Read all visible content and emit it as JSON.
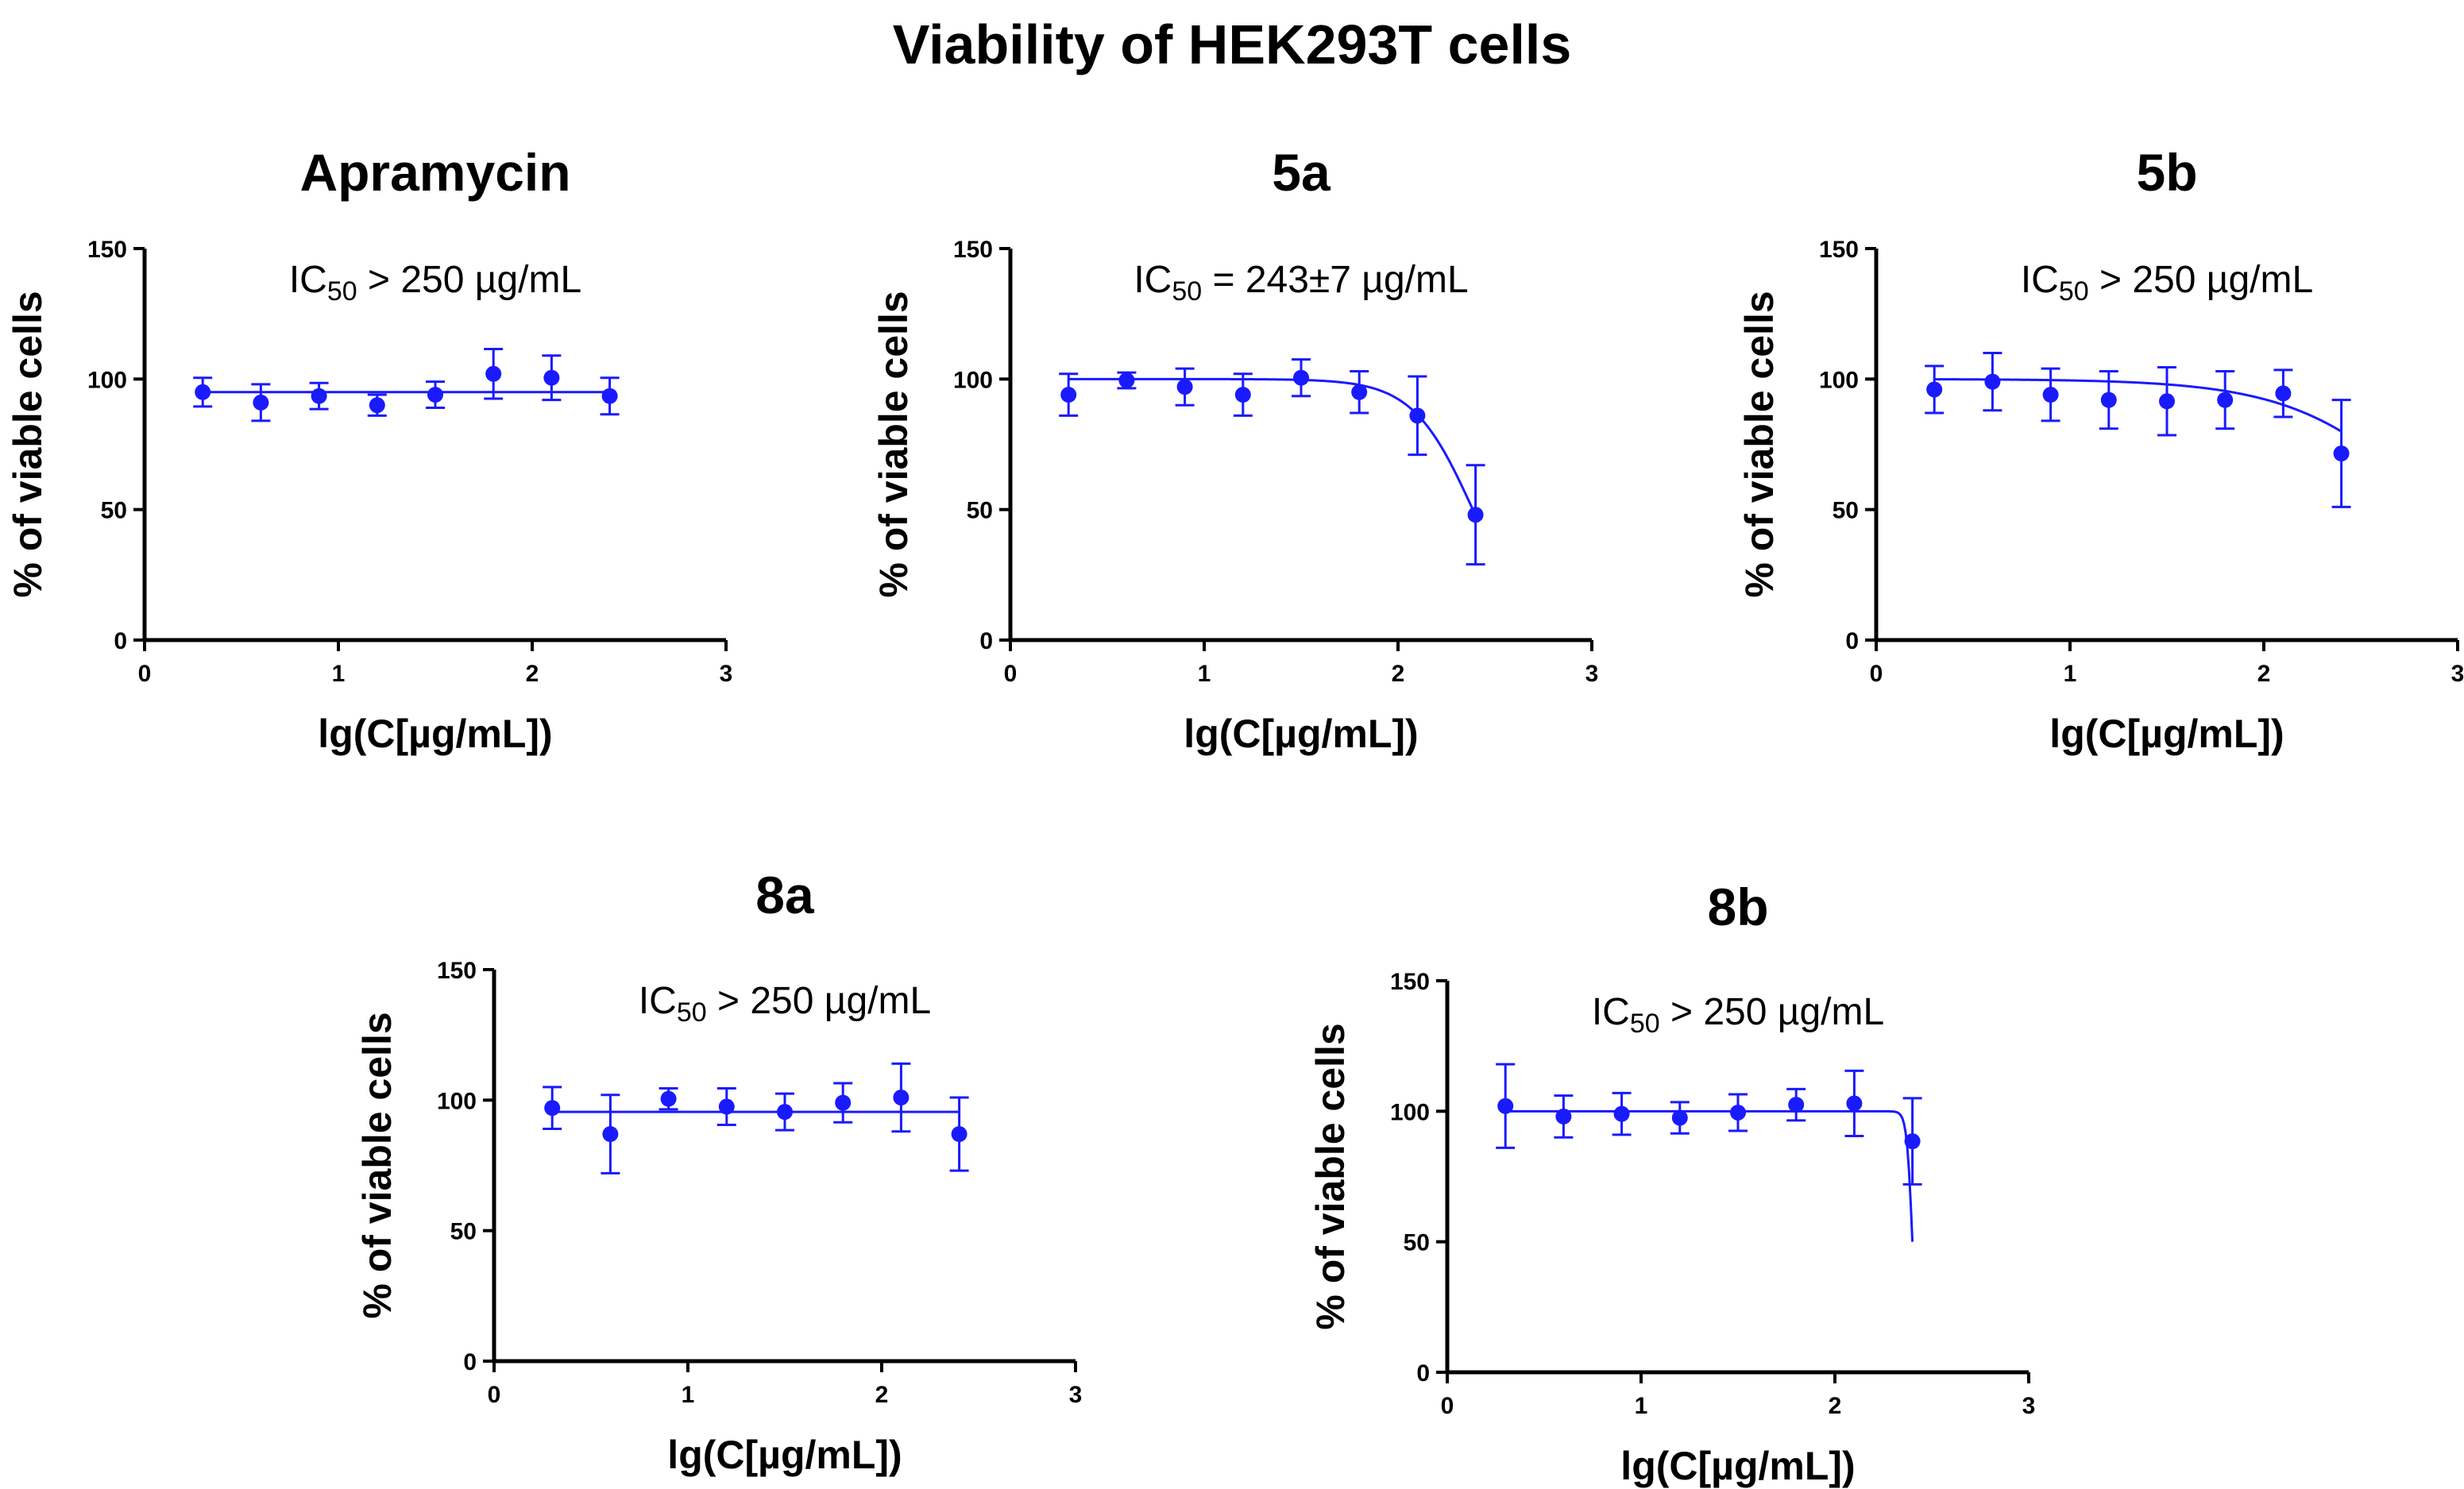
{
  "chart_data": {
    "title": "Viability of HEK293T cells",
    "panels": [
      {
        "type": "scatter",
        "title": "Apramycin",
        "annotation": {
          "prefix": "IC",
          "sub": "50",
          "suffix": " > 250 µg/mL"
        },
        "xlabel": "lg(C[µg/mL])",
        "ylabel": "% of viable cells",
        "xlim": [
          0,
          3
        ],
        "ylim": [
          0,
          150
        ],
        "xticks": [
          0,
          1,
          2,
          3
        ],
        "yticks": [
          0,
          50,
          100,
          150
        ],
        "x": [
          0.3,
          0.6,
          0.9,
          1.2,
          1.5,
          1.8,
          2.1,
          2.4
        ],
        "y": [
          95,
          91,
          93.5,
          90,
          94,
          102,
          100.5,
          93.5
        ],
        "error": [
          5.5,
          7,
          5,
          4,
          5,
          9.5,
          8.5,
          7
        ],
        "fit": {
          "kind": "flat",
          "top": 95
        }
      },
      {
        "type": "scatter",
        "title": "5a",
        "annotation": {
          "prefix": "IC",
          "sub": "50",
          "suffix": " = 243±7 µg/mL"
        },
        "xlabel": "lg(C[µg/mL])",
        "ylabel": "% of viable cells",
        "xlim": [
          0,
          3
        ],
        "ylim": [
          0,
          150
        ],
        "xticks": [
          0,
          1,
          2,
          3
        ],
        "yticks": [
          0,
          50,
          100,
          150
        ],
        "x": [
          0.3,
          0.6,
          0.9,
          1.2,
          1.5,
          1.8,
          2.1,
          2.4
        ],
        "y": [
          94,
          99.5,
          97,
          94,
          100.5,
          95,
          86,
          48
        ],
        "error": [
          8,
          3,
          7,
          8,
          7,
          8,
          15,
          19
        ],
        "fit": {
          "kind": "sigmoid",
          "top": 100,
          "logIC50": 2.386,
          "slope": 2.8,
          "xmax": 2.4
        }
      },
      {
        "type": "scatter",
        "title": "5b",
        "annotation": {
          "prefix": "IC",
          "sub": "50",
          "suffix": " > 250 µg/mL"
        },
        "xlabel": "lg(C[µg/mL])",
        "ylabel": "% of viable cells",
        "xlim": [
          0,
          3
        ],
        "ylim": [
          0,
          150
        ],
        "xticks": [
          0,
          1,
          2,
          3
        ],
        "yticks": [
          0,
          50,
          100,
          150
        ],
        "x": [
          0.3,
          0.6,
          0.9,
          1.2,
          1.5,
          1.8,
          2.1,
          2.4
        ],
        "y": [
          96,
          99,
          94,
          92,
          91.5,
          92,
          94.5,
          71.5
        ],
        "error": [
          9,
          11,
          10,
          11,
          13,
          11,
          9,
          20.5
        ],
        "fit": {
          "kind": "sigmoid",
          "top": 100,
          "logIC50": 2.9,
          "slope": 1.2,
          "xmax": 2.4
        }
      },
      {
        "type": "scatter",
        "title": "8a",
        "annotation": {
          "prefix": "IC",
          "sub": "50",
          "suffix": " > 250 µg/mL"
        },
        "xlabel": "lg(C[µg/mL])",
        "ylabel": "% of viable cells",
        "xlim": [
          0,
          3
        ],
        "ylim": [
          0,
          150
        ],
        "xticks": [
          0,
          1,
          2,
          3
        ],
        "yticks": [
          0,
          50,
          100,
          150
        ],
        "x": [
          0.3,
          0.6,
          0.9,
          1.2,
          1.5,
          1.8,
          2.1,
          2.4
        ],
        "y": [
          97,
          87,
          100.5,
          97.5,
          95.5,
          99,
          101,
          87
        ],
        "error": [
          8,
          15,
          4,
          7,
          7,
          7.5,
          13,
          14
        ],
        "fit": {
          "kind": "flat",
          "top": 95.5
        }
      },
      {
        "type": "scatter",
        "title": "8b",
        "annotation": {
          "prefix": "IC",
          "sub": "50",
          "suffix": " > 250 µg/mL"
        },
        "xlabel": "lg(C[µg/mL])",
        "ylabel": "% of viable cells",
        "xlim": [
          0,
          3
        ],
        "ylim": [
          0,
          150
        ],
        "xticks": [
          0,
          1,
          2,
          3
        ],
        "yticks": [
          0,
          50,
          100,
          150
        ],
        "x": [
          0.3,
          0.6,
          0.9,
          1.2,
          1.5,
          1.8,
          2.1,
          2.4
        ],
        "y": [
          102,
          98,
          99,
          97.5,
          99.5,
          102.5,
          103,
          88.5
        ],
        "error": [
          16,
          8,
          8,
          6,
          7,
          6,
          12.5,
          16.5
        ],
        "fit": {
          "kind": "sigmoid",
          "top": 100,
          "logIC50": 2.4,
          "slope": 30,
          "xmax": 2.4
        }
      }
    ]
  }
}
